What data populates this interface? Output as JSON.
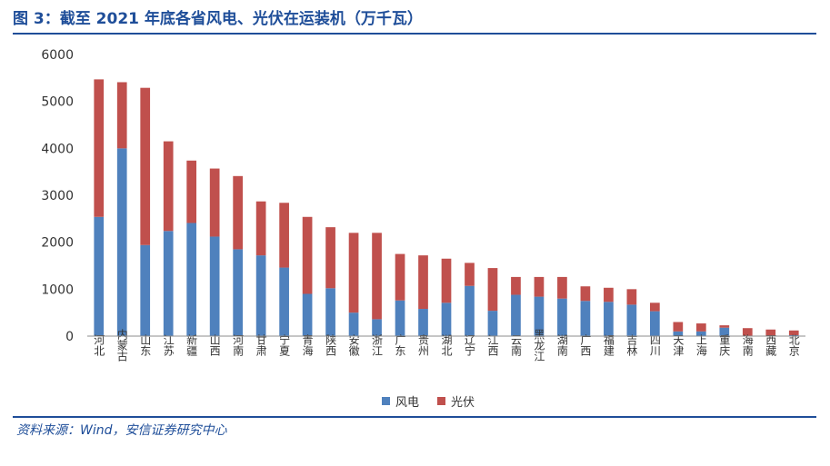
{
  "header": {
    "title": "图 3：截至 2021 年底各省风电、光伏在运装机（万千瓦）"
  },
  "footer": {
    "source": "资料来源：Wind，安信证券研究中心"
  },
  "chart_data": {
    "type": "bar",
    "stacked": true,
    "categories": [
      "河北",
      "内蒙古",
      "山东",
      "江苏",
      "新疆",
      "山西",
      "河南",
      "甘肃",
      "宁夏",
      "青海",
      "陕西",
      "安徽",
      "浙江",
      "广东",
      "贵州",
      "湖北",
      "辽宁",
      "江西",
      "云南",
      "黑龙江",
      "湖南",
      "广西",
      "福建",
      "吉林",
      "四川",
      "天津",
      "上海",
      "重庆",
      "海南",
      "西藏",
      "北京"
    ],
    "series": [
      {
        "name": "风电",
        "color": "#4f81bd",
        "values": [
          2540,
          4000,
          1940,
          2240,
          2410,
          2120,
          1850,
          1720,
          1460,
          900,
          1020,
          500,
          360,
          760,
          580,
          710,
          1070,
          540,
          880,
          840,
          800,
          750,
          730,
          670,
          530,
          100,
          100,
          180,
          10,
          0,
          20
        ]
      },
      {
        "name": "光伏",
        "color": "#c0504d",
        "values": [
          2930,
          1410,
          3350,
          1910,
          1330,
          1450,
          1560,
          1150,
          1380,
          1640,
          1300,
          1700,
          1840,
          990,
          1140,
          940,
          490,
          910,
          380,
          420,
          460,
          310,
          300,
          330,
          180,
          200,
          170,
          50,
          160,
          140,
          100
        ]
      }
    ],
    "ylim": [
      0,
      6000
    ],
    "yticks": [
      0,
      1000,
      2000,
      3000,
      4000,
      5000,
      6000
    ],
    "legend": "bottom-center",
    "grid": false
  }
}
